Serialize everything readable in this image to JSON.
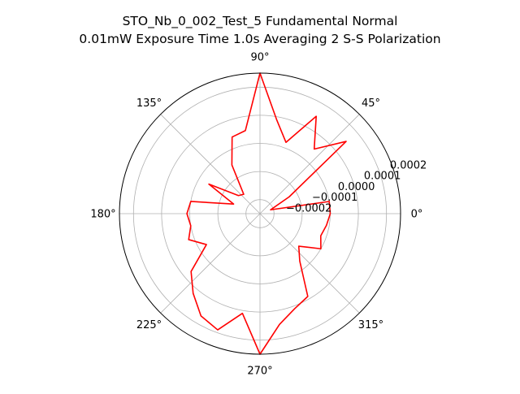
{
  "chart_data": {
    "type": "line",
    "projection": "polar",
    "title_lines": [
      "STO_Nb_0_002_Test_5 Fundamental Normal",
      "0.01mW Exposure Time 1.0s Averaging 2 S-S  Polarization"
    ],
    "angle_unit": "degrees",
    "angle_ticks": [
      "0°",
      "45°",
      "90°",
      "135°",
      "180°",
      "225°",
      "270°",
      "315°"
    ],
    "angle_tick_values": [
      0,
      45,
      90,
      135,
      180,
      225,
      270,
      315
    ],
    "radial_ticks": [
      "−0.0002",
      "−0.0001",
      "0.0000",
      "0.0001",
      "0.0002"
    ],
    "radial_tick_values": [
      -0.0002,
      -0.0001,
      0.0,
      0.0001,
      0.0002
    ],
    "rlim": [
      -0.00025,
      0.00025
    ],
    "rlabel_position_deg": 22.5,
    "grid": true,
    "series": [
      {
        "color": "#ff0000",
        "theta_deg": [
          0,
          10,
          20,
          30,
          40,
          50,
          60,
          70,
          80,
          90,
          100,
          110,
          120,
          130,
          140,
          150,
          160,
          170,
          180,
          190,
          200,
          210,
          220,
          230,
          240,
          250,
          260,
          270,
          280,
          290,
          300,
          310,
          320,
          330,
          340,
          350,
          360
        ],
        "r": [
          0.0,
          -0.0,
          -0.00021,
          -0.00013,
          0.00015,
          5e-05,
          0.00015,
          2e-05,
          9e-05,
          0.00025,
          5e-05,
          4e-05,
          -5e-05,
          -0.00016,
          -0.00015,
          -4e-05,
          -0.00015,
          0.0,
          1e-05,
          0.0,
          2e-05,
          -3e-05,
          7e-05,
          0.00012,
          0.00017,
          0.00019,
          0.00011,
          0.00025,
          0.00015,
          0.00011,
          9e-05,
          -3e-05,
          -7e-05,
          0.0,
          -2e-05,
          -1e-05,
          0.0
        ]
      }
    ]
  }
}
